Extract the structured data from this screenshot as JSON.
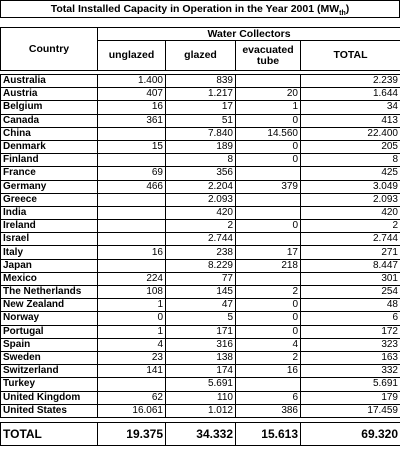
{
  "title": "Total Installed Capacity in Operation in the Year 2001 (MW",
  "title_sub": "th",
  "title_end": ")",
  "table": {
    "header": {
      "country": "Country",
      "group": "Water Collectors",
      "columns": [
        "unglazed",
        "glazed",
        "evacuated tube",
        "TOTAL"
      ]
    },
    "rows": [
      [
        "Australia",
        "1.400",
        "839",
        null,
        "2.239"
      ],
      [
        "Austria",
        "407",
        "1.217",
        "20",
        "1.644"
      ],
      [
        "Belgium",
        "16",
        "17",
        "1",
        "34"
      ],
      [
        "Canada",
        "361",
        "51",
        "0",
        "413"
      ],
      [
        "China",
        null,
        "7.840",
        "14.560",
        "22.400"
      ],
      [
        "Denmark",
        "15",
        "189",
        "0",
        "205"
      ],
      [
        "Finland",
        null,
        "8",
        "0",
        "8"
      ],
      [
        "France",
        "69",
        "356",
        null,
        "425"
      ],
      [
        "Germany",
        "466",
        "2.204",
        "379",
        "3.049"
      ],
      [
        "Greece",
        null,
        "2.093",
        null,
        "2.093"
      ],
      [
        "India",
        null,
        "420",
        null,
        "420"
      ],
      [
        "Ireland",
        null,
        "2",
        "0",
        "2"
      ],
      [
        "Israel",
        null,
        "2.744",
        null,
        "2.744"
      ],
      [
        "Italy",
        "16",
        "238",
        "17",
        "271"
      ],
      [
        "Japan",
        null,
        "8.229",
        "218",
        "8.447"
      ],
      [
        "Mexico",
        "224",
        "77",
        null,
        "301"
      ],
      [
        "The Netherlands",
        "108",
        "145",
        "2",
        "254"
      ],
      [
        "New Zealand",
        "1",
        "47",
        "0",
        "48"
      ],
      [
        "Norway",
        "0",
        "5",
        "0",
        "6"
      ],
      [
        "Portugal",
        "1",
        "171",
        "0",
        "172"
      ],
      [
        "Spain",
        "4",
        "316",
        "4",
        "323"
      ],
      [
        "Sweden",
        "23",
        "138",
        "2",
        "163"
      ],
      [
        "Switzerland",
        "141",
        "174",
        "16",
        "332"
      ],
      [
        "Turkey",
        null,
        "5.691",
        null,
        "5.691"
      ],
      [
        "United Kingdom",
        "62",
        "110",
        "6",
        "179"
      ],
      [
        "United States",
        "16.061",
        "1.012",
        "386",
        "17.459"
      ]
    ],
    "total_row": [
      "TOTAL",
      "19.375",
      "34.332",
      "15.613",
      "69.320"
    ]
  }
}
